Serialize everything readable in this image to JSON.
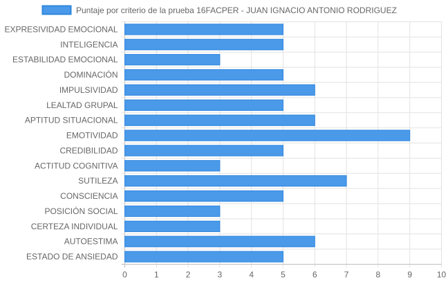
{
  "chart_data": {
    "type": "bar",
    "orientation": "horizontal",
    "categories": [
      "EXPRESIVIDAD EMOCIONAL",
      "INTELIGENCIA",
      "ESTABILIDAD EMOCIONAL",
      "DOMINACIÓN",
      "IMPULSIVIDAD",
      "LEALTAD GRUPAL",
      "APTITUD SITUACIONAL",
      "EMOTIVIDAD",
      "CREDIBILIDAD",
      "ACTITUD COGNITIVA",
      "SUTILEZA",
      "CONSCIENCIA",
      "POSICIÓN SOCIAL",
      "CERTEZA INDIVIDUAL",
      "AUTOESTIMA",
      "ESTADO DE ANSIEDAD"
    ],
    "series": [
      {
        "name": "Puntaje por criterio de la prueba 16FACPER - JUAN IGNACIO ANTONIO RODRIGUEZ",
        "values": [
          5,
          5,
          3,
          5,
          6,
          5,
          6,
          9,
          5,
          3,
          7,
          5,
          3,
          3,
          6,
          5
        ],
        "color": "#4a9ae9",
        "border_color": "#2f86de"
      }
    ],
    "xlim": [
      0,
      10
    ],
    "x_ticks": [
      "0",
      "1",
      "2",
      "3",
      "4",
      "5",
      "6",
      "7",
      "8",
      "9",
      "10"
    ],
    "grid": true,
    "legend_position": "top"
  }
}
